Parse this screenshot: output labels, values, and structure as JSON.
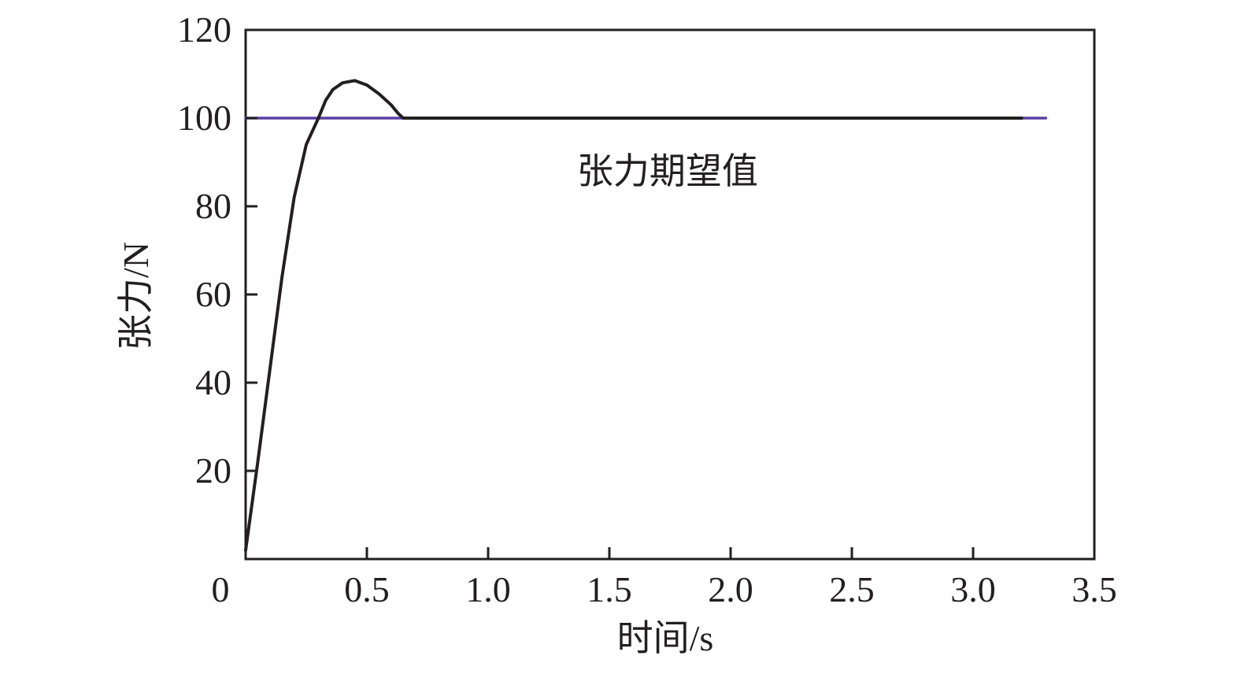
{
  "chart_data": {
    "type": "line",
    "title": "",
    "xlabel": "时间/s",
    "ylabel": "张力/N",
    "xlim": [
      0,
      3.5
    ],
    "ylim": [
      0,
      120
    ],
    "x_ticks": [
      0,
      0.5,
      1.0,
      1.5,
      2.0,
      2.5,
      3.0,
      3.5
    ],
    "x_tick_labels": [
      "0",
      "0.5",
      "1.0",
      "1.5",
      "2.0",
      "2.5",
      "3.0",
      "3.5"
    ],
    "y_ticks": [
      20,
      40,
      60,
      80,
      100,
      120
    ],
    "y_tick_labels": [
      "20",
      "40",
      "60",
      "80",
      "100",
      "120"
    ],
    "grid": false,
    "series": [
      {
        "color": "#231f20",
        "x": [
          0,
          0.05,
          0.1,
          0.15,
          0.2,
          0.25,
          0.3,
          0.33,
          0.36,
          0.4,
          0.45,
          0.5,
          0.55,
          0.6,
          0.63,
          0.65,
          0.7,
          0.8,
          1.0,
          1.5,
          2.0,
          2.5,
          3.0,
          3.2
        ],
        "y": [
          2,
          22,
          43,
          64,
          82,
          94,
          100,
          104,
          106.5,
          108,
          108.5,
          107.5,
          105.5,
          103,
          101,
          100,
          100,
          100,
          100,
          100,
          100,
          100,
          100,
          100
        ]
      },
      {
        "color": "#5b3fa0",
        "x": [
          0,
          3.3
        ],
        "y": [
          100,
          100
        ]
      }
    ],
    "annotations": [
      {
        "text": "张力期望值",
        "x": 1.74,
        "y": 88
      }
    ]
  }
}
